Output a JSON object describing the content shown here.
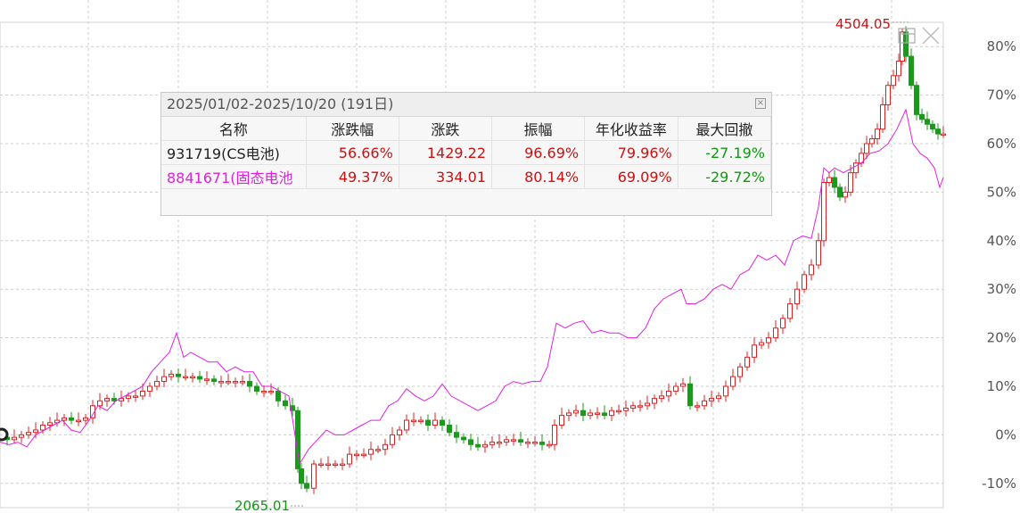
{
  "colors": {
    "up": "#e02020",
    "down": "#1a9a1a",
    "comparison_line": "#e020e0",
    "grid": "#cccccc",
    "axis_text": "#555555",
    "high_label": "#cc1111",
    "low_label": "#109910"
  },
  "panel": {
    "header": "2025/01/02-2025/10/20 (191日)",
    "columns": [
      "名称",
      "涨跌幅",
      "涨跌",
      "振幅",
      "年化收益率",
      "最大回撤"
    ],
    "rows": [
      {
        "name": "931719(CS电池)",
        "change_pct": "56.66%",
        "change": "1429.22",
        "amplitude": "96.69%",
        "annualized": "79.96%",
        "max_drawdown": "-27.19%"
      },
      {
        "name": "8841671(固态电池",
        "change_pct": "49.37%",
        "change": "334.01",
        "amplitude": "80.14%",
        "annualized": "69.09%",
        "max_drawdown": "-29.72%"
      }
    ]
  },
  "chart_data": {
    "type": "line",
    "y_axis_labels": [
      "80%",
      "70%",
      "60%",
      "50%",
      "40%",
      "30%",
      "20%",
      "10%",
      "0%",
      "-10%"
    ],
    "ylim": [
      -15,
      85
    ],
    "grid": true,
    "annotations": {
      "high_label": "4504.05",
      "low_label": "2065.01"
    },
    "series": [
      {
        "kind": "candlestick-pct",
        "points": [
          [
            0,
            -0.5
          ],
          [
            8,
            -1
          ],
          [
            16,
            -0.5
          ],
          [
            24,
            0
          ],
          [
            32,
            0.5
          ],
          [
            40,
            1
          ],
          [
            48,
            2
          ],
          [
            56,
            2.5
          ],
          [
            64,
            3
          ],
          [
            72,
            3.5
          ],
          [
            80,
            3
          ],
          [
            88,
            3
          ],
          [
            96,
            3.5
          ],
          [
            104,
            6
          ],
          [
            112,
            7
          ],
          [
            120,
            7.5
          ],
          [
            128,
            7
          ],
          [
            136,
            7.5
          ],
          [
            144,
            8
          ],
          [
            152,
            8
          ],
          [
            160,
            9
          ],
          [
            168,
            10
          ],
          [
            176,
            11
          ],
          [
            184,
            12
          ],
          [
            192,
            12.5
          ],
          [
            200,
            12
          ],
          [
            208,
            12
          ],
          [
            216,
            12
          ],
          [
            224,
            11.5
          ],
          [
            232,
            11.5
          ],
          [
            240,
            11
          ],
          [
            248,
            11
          ],
          [
            256,
            11
          ],
          [
            264,
            11
          ],
          [
            272,
            11
          ],
          [
            280,
            10
          ],
          [
            288,
            9
          ],
          [
            296,
            9
          ],
          [
            304,
            9
          ],
          [
            312,
            7
          ],
          [
            320,
            6
          ],
          [
            328,
            5
          ],
          [
            334,
            -7
          ],
          [
            338,
            -10
          ],
          [
            344,
            -11
          ],
          [
            352,
            -6
          ],
          [
            360,
            -6
          ],
          [
            368,
            -6
          ],
          [
            376,
            -6
          ],
          [
            384,
            -6
          ],
          [
            392,
            -4
          ],
          [
            400,
            -4
          ],
          [
            408,
            -4
          ],
          [
            416,
            -3
          ],
          [
            424,
            -3
          ],
          [
            432,
            -2
          ],
          [
            440,
            0
          ],
          [
            448,
            1
          ],
          [
            456,
            3
          ],
          [
            464,
            3
          ],
          [
            472,
            3
          ],
          [
            480,
            2
          ],
          [
            488,
            3
          ],
          [
            496,
            2
          ],
          [
            504,
            0.5
          ],
          [
            512,
            -0.5
          ],
          [
            520,
            -1
          ],
          [
            528,
            -2
          ],
          [
            536,
            -2.5
          ],
          [
            544,
            -2
          ],
          [
            552,
            -1.5
          ],
          [
            560,
            -1.5
          ],
          [
            568,
            -1
          ],
          [
            576,
            -1
          ],
          [
            584,
            -1.5
          ],
          [
            592,
            -1.5
          ],
          [
            600,
            -1.5
          ],
          [
            608,
            -2
          ],
          [
            616,
            -2
          ],
          [
            622,
            2
          ],
          [
            630,
            4
          ],
          [
            638,
            4.5
          ],
          [
            646,
            5
          ],
          [
            654,
            4
          ],
          [
            662,
            4.5
          ],
          [
            670,
            4.5
          ],
          [
            678,
            4
          ],
          [
            686,
            5
          ],
          [
            694,
            5
          ],
          [
            702,
            5.5
          ],
          [
            710,
            6
          ],
          [
            718,
            6
          ],
          [
            726,
            6.5
          ],
          [
            734,
            7.5
          ],
          [
            742,
            8
          ],
          [
            750,
            9
          ],
          [
            758,
            10
          ],
          [
            766,
            10.5
          ],
          [
            774,
            6
          ],
          [
            782,
            6
          ],
          [
            790,
            7
          ],
          [
            798,
            7.5
          ],
          [
            806,
            8
          ],
          [
            814,
            10
          ],
          [
            822,
            12
          ],
          [
            830,
            14
          ],
          [
            838,
            16
          ],
          [
            846,
            18.5
          ],
          [
            854,
            19
          ],
          [
            862,
            20
          ],
          [
            870,
            22
          ],
          [
            878,
            24
          ],
          [
            886,
            27
          ],
          [
            894,
            30
          ],
          [
            902,
            33
          ],
          [
            910,
            35
          ],
          [
            918,
            40
          ],
          [
            924,
            52
          ],
          [
            930,
            53
          ],
          [
            936,
            51
          ],
          [
            942,
            49
          ],
          [
            948,
            50
          ],
          [
            954,
            54
          ],
          [
            960,
            56
          ],
          [
            966,
            58
          ],
          [
            972,
            60
          ],
          [
            978,
            61
          ],
          [
            984,
            63
          ],
          [
            990,
            68
          ],
          [
            996,
            72
          ],
          [
            1002,
            74
          ],
          [
            1008,
            77
          ],
          [
            1012,
            83
          ],
          [
            1016,
            78
          ],
          [
            1022,
            72
          ],
          [
            1028,
            66
          ],
          [
            1034,
            65
          ],
          [
            1040,
            64
          ],
          [
            1046,
            63
          ],
          [
            1052,
            62
          ],
          [
            1058,
            62
          ]
        ]
      },
      {
        "kind": "line",
        "points": [
          [
            0,
            -1.5
          ],
          [
            10,
            -2
          ],
          [
            20,
            -1.5
          ],
          [
            30,
            -2.5
          ],
          [
            40,
            0
          ],
          [
            50,
            1
          ],
          [
            60,
            2
          ],
          [
            70,
            3
          ],
          [
            80,
            1
          ],
          [
            90,
            0.5
          ],
          [
            100,
            3
          ],
          [
            110,
            6
          ],
          [
            120,
            5
          ],
          [
            130,
            7
          ],
          [
            140,
            8
          ],
          [
            150,
            9
          ],
          [
            160,
            10
          ],
          [
            170,
            13
          ],
          [
            180,
            15
          ],
          [
            190,
            17
          ],
          [
            198,
            21
          ],
          [
            206,
            16
          ],
          [
            214,
            17
          ],
          [
            224,
            16
          ],
          [
            234,
            15
          ],
          [
            244,
            15
          ],
          [
            254,
            13
          ],
          [
            264,
            14
          ],
          [
            274,
            13
          ],
          [
            284,
            13
          ],
          [
            294,
            10
          ],
          [
            304,
            10
          ],
          [
            314,
            9
          ],
          [
            324,
            8
          ],
          [
            330,
            1
          ],
          [
            336,
            -6
          ],
          [
            346,
            -3
          ],
          [
            356,
            -1
          ],
          [
            366,
            1
          ],
          [
            376,
            0
          ],
          [
            386,
            0
          ],
          [
            396,
            1
          ],
          [
            406,
            2
          ],
          [
            416,
            3
          ],
          [
            426,
            3
          ],
          [
            436,
            6
          ],
          [
            446,
            7
          ],
          [
            456,
            9.5
          ],
          [
            466,
            8
          ],
          [
            476,
            7
          ],
          [
            486,
            8
          ],
          [
            496,
            10.5
          ],
          [
            506,
            8
          ],
          [
            516,
            7
          ],
          [
            526,
            6
          ],
          [
            536,
            5
          ],
          [
            546,
            6
          ],
          [
            556,
            7
          ],
          [
            566,
            10
          ],
          [
            576,
            11
          ],
          [
            586,
            10.5
          ],
          [
            596,
            11
          ],
          [
            606,
            11
          ],
          [
            614,
            14
          ],
          [
            624,
            23
          ],
          [
            634,
            22
          ],
          [
            644,
            23
          ],
          [
            654,
            23.5
          ],
          [
            664,
            21
          ],
          [
            674,
            21.5
          ],
          [
            684,
            21
          ],
          [
            694,
            21
          ],
          [
            704,
            20
          ],
          [
            714,
            20
          ],
          [
            724,
            22
          ],
          [
            734,
            26
          ],
          [
            744,
            28
          ],
          [
            754,
            29
          ],
          [
            764,
            30
          ],
          [
            770,
            27
          ],
          [
            780,
            27
          ],
          [
            790,
            28
          ],
          [
            800,
            30
          ],
          [
            810,
            31
          ],
          [
            820,
            30
          ],
          [
            830,
            33
          ],
          [
            840,
            34
          ],
          [
            850,
            37
          ],
          [
            860,
            36
          ],
          [
            870,
            37
          ],
          [
            880,
            35
          ],
          [
            890,
            40
          ],
          [
            900,
            41
          ],
          [
            910,
            40.5
          ],
          [
            918,
            47
          ],
          [
            924,
            55
          ],
          [
            930,
            54
          ],
          [
            936,
            55
          ],
          [
            946,
            54
          ],
          [
            956,
            55
          ],
          [
            966,
            56
          ],
          [
            976,
            58
          ],
          [
            986,
            58.5
          ],
          [
            996,
            60
          ],
          [
            1006,
            63
          ],
          [
            1016,
            67
          ],
          [
            1024,
            60
          ],
          [
            1032,
            58
          ],
          [
            1040,
            57
          ],
          [
            1048,
            55
          ],
          [
            1054,
            51
          ],
          [
            1058,
            53
          ]
        ]
      }
    ]
  }
}
